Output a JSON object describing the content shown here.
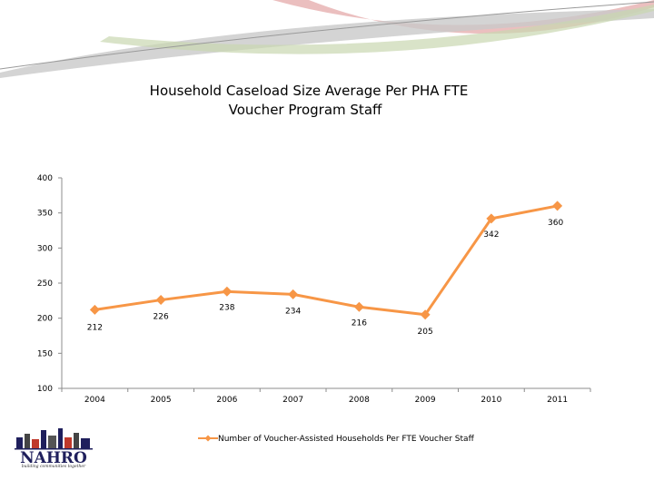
{
  "colors": {
    "series": "#f79646",
    "swoosh_pink": "#e8b4b4",
    "swoosh_gray": "#c9c9c9",
    "swoosh_green": "#c9d7b0",
    "logo_navy": "#1f1f5c",
    "logo_red": "#c0392b"
  },
  "logo": {
    "name": "NAHRO",
    "tagline": "building communities together"
  },
  "chart_data": {
    "type": "line",
    "title_lines": [
      "Household Caseload Size Average Per PHA FTE",
      "Voucher Program Staff"
    ],
    "categories": [
      "2004",
      "2005",
      "2006",
      "2007",
      "2008",
      "2009",
      "2010",
      "2011"
    ],
    "series": [
      {
        "name": "Number of Voucher-Assisted Households Per FTE Voucher Staff",
        "values": [
          212,
          226,
          238,
          234,
          216,
          205,
          342,
          360
        ],
        "data_labels": [
          "212",
          "226",
          "238",
          "234",
          "216",
          "205",
          "342",
          "360"
        ]
      }
    ],
    "y_ticks": [
      "400",
      "350",
      "300",
      "250",
      "200",
      "150",
      "100"
    ],
    "ylim": [
      100,
      400
    ],
    "grid": false,
    "legend": "bottom"
  }
}
